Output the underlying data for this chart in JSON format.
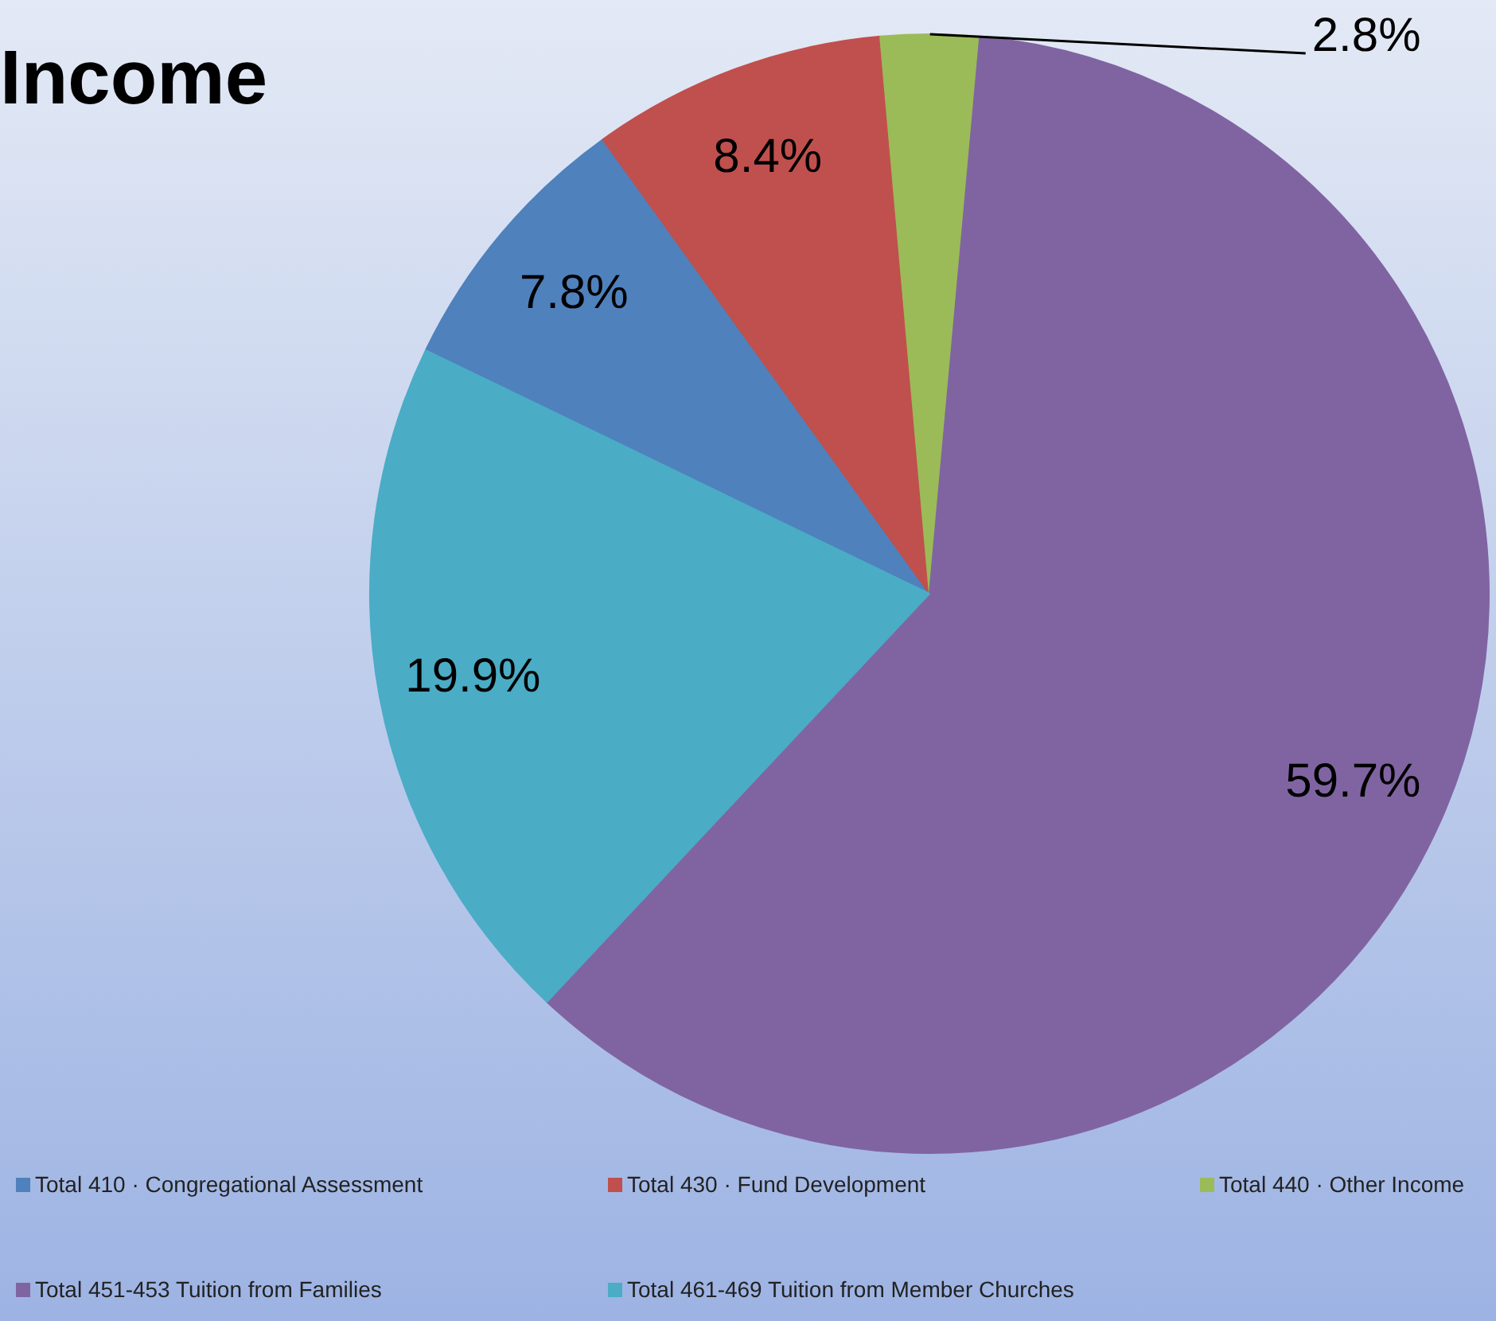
{
  "chart_data": {
    "type": "pie",
    "title": "Income",
    "categories": [
      "Total 410 · Congregational Assessment",
      "Total 430 · Fund Development",
      "Total 440 · Other Income",
      "Total 451-453 Tuition from Families",
      "Total 461-469 Tuition from Member Churches"
    ],
    "values": [
      7.8,
      8.4,
      2.8,
      59.7,
      19.9
    ],
    "colors": [
      "#4f81bd",
      "#c0504d",
      "#9bbb59",
      "#8064a2",
      "#4bacc6"
    ],
    "value_labels": [
      "7.8%",
      "8.4%",
      "2.8%",
      "59.7%",
      "19.9%"
    ],
    "legend": "bottom"
  }
}
